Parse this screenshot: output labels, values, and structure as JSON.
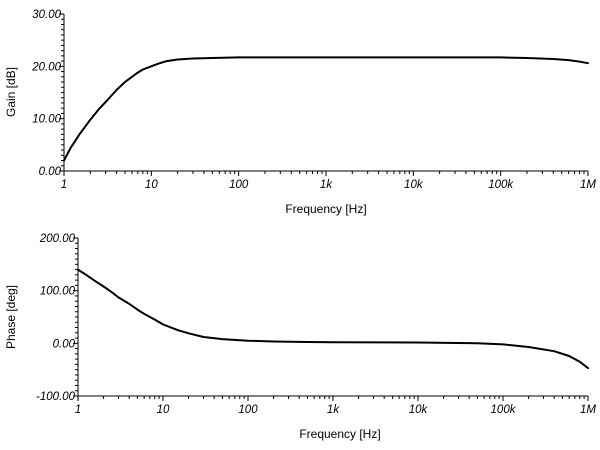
{
  "chart_data": [
    {
      "type": "line",
      "id": "gain",
      "xlabel": "Frequency [Hz]",
      "ylabel": "Gain [dB]",
      "xscale": "log",
      "xlim": [
        1,
        1000000
      ],
      "ylim": [
        0,
        30
      ],
      "x_ticks": [
        1,
        10,
        100,
        1000,
        10000,
        100000,
        1000000
      ],
      "x_tick_labels": [
        "1",
        "10",
        "100",
        "1k",
        "10k",
        "100k",
        "1M"
      ],
      "y_ticks": [
        0,
        10,
        20,
        30
      ],
      "y_tick_labels": [
        "0.00",
        "10.00",
        "20.00",
        "30.00"
      ],
      "grid": false,
      "series": [
        {
          "x": [
            1,
            1.2,
            1.5,
            2,
            2.5,
            3,
            4,
            5,
            6,
            7,
            8,
            10,
            12,
            15,
            20,
            30,
            50,
            100,
            1000,
            10000,
            100000,
            200000,
            400000,
            600000,
            800000,
            1000000
          ],
          "y": [
            2.0,
            4.5,
            7.0,
            9.8,
            11.8,
            13.2,
            15.5,
            17.0,
            18.0,
            18.8,
            19.4,
            20.0,
            20.5,
            21.0,
            21.3,
            21.5,
            21.6,
            21.7,
            21.7,
            21.7,
            21.7,
            21.6,
            21.4,
            21.2,
            20.9,
            20.6
          ]
        }
      ]
    },
    {
      "type": "line",
      "id": "phase",
      "xlabel": "Frequency [Hz]",
      "ylabel": "Phase [deg]",
      "xscale": "log",
      "xlim": [
        1,
        1000000
      ],
      "ylim": [
        -100,
        200
      ],
      "x_ticks": [
        1,
        10,
        100,
        1000,
        10000,
        100000,
        1000000
      ],
      "x_tick_labels": [
        "1",
        "10",
        "100",
        "1k",
        "10k",
        "100k",
        "1M"
      ],
      "y_ticks": [
        -100,
        0,
        100,
        200
      ],
      "y_tick_labels": [
        "-100.00",
        "0.00",
        "100.00",
        "200.00"
      ],
      "grid": false,
      "series": [
        {
          "x": [
            1,
            1.3,
            1.6,
            2,
            2.5,
            3,
            4,
            5,
            6,
            8,
            10,
            15,
            20,
            30,
            50,
            100,
            200,
            500,
            1000,
            10000,
            50000,
            100000,
            200000,
            400000,
            600000,
            800000,
            1000000
          ],
          "y": [
            140,
            128,
            118,
            108,
            97,
            87,
            75,
            64,
            56,
            45,
            36,
            25,
            19,
            12,
            8,
            5,
            3.5,
            2.5,
            2,
            1.5,
            0,
            -2,
            -7,
            -15,
            -24,
            -35,
            -47
          ]
        }
      ]
    }
  ]
}
